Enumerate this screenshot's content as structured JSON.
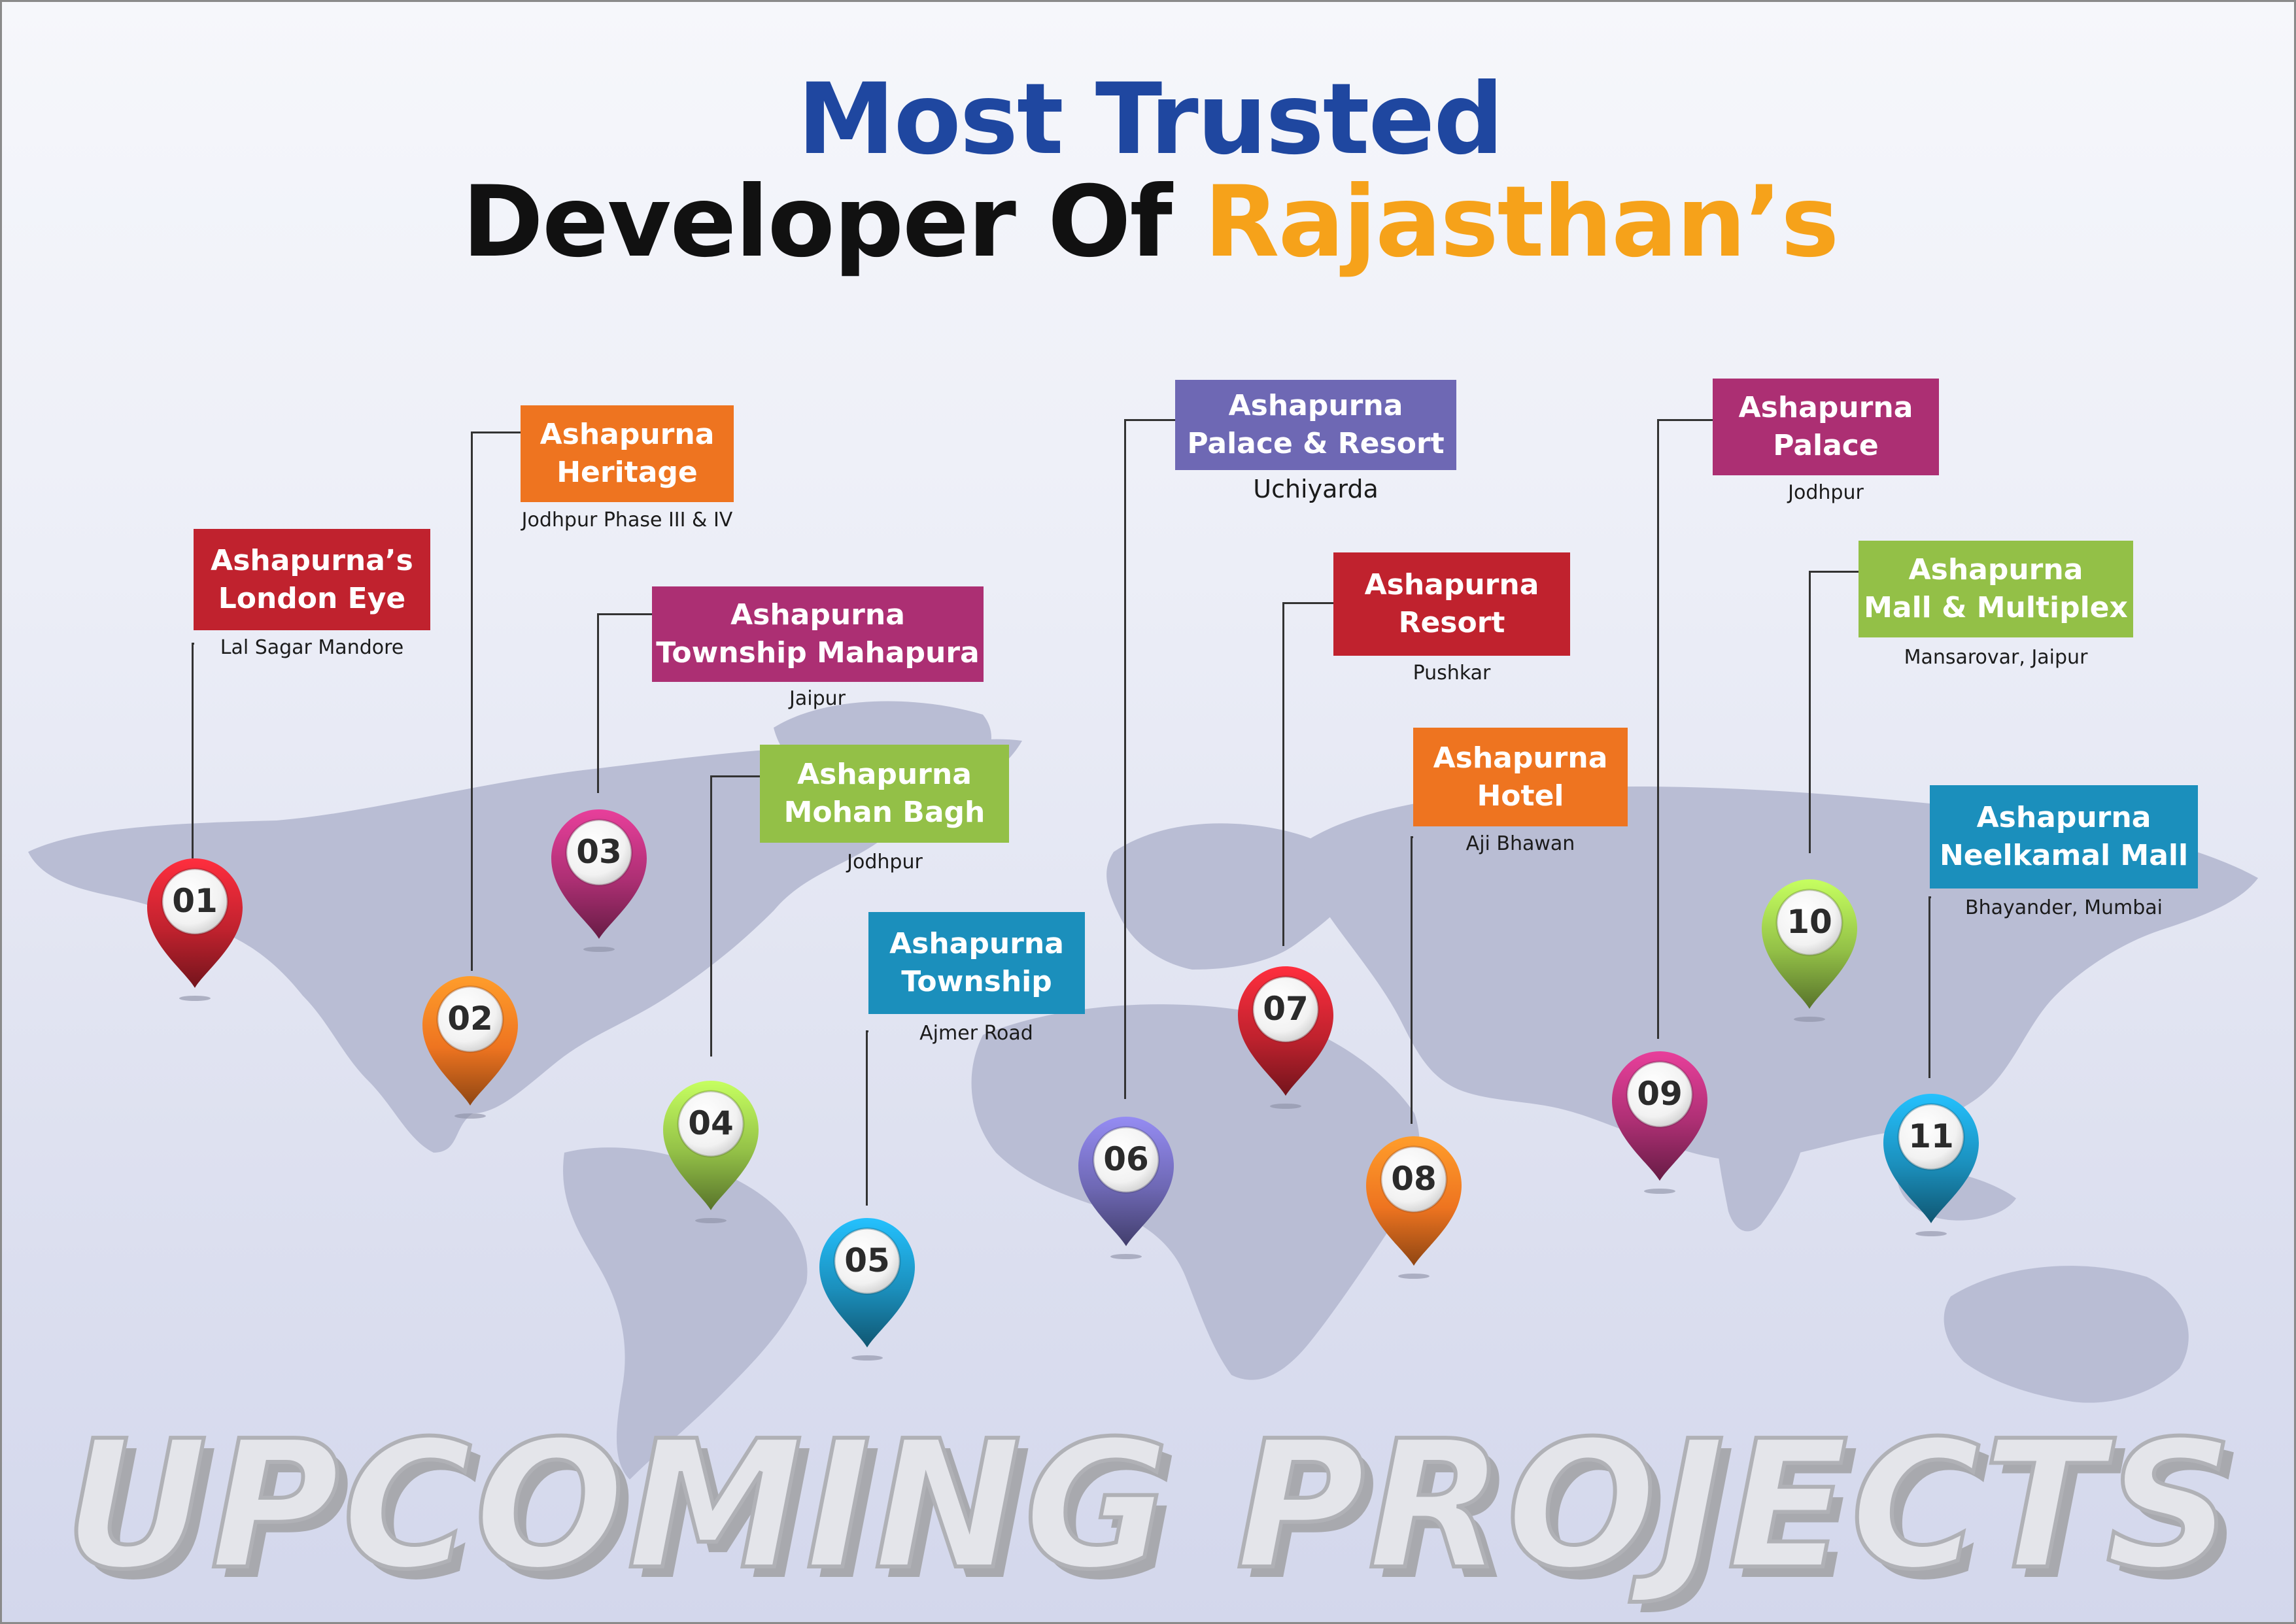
{
  "title": {
    "line1": "Most Trusted",
    "line2_prefix": "Developer Of ",
    "line2_accent": "Rajasthan’s"
  },
  "watermark": "UPCOMING PROJECTS",
  "projects": [
    {
      "num": "01",
      "name_line1": "Ashapurna’s",
      "name_line2": "London Eye",
      "location": "Lal Sagar Mandore",
      "color": "#c0222e"
    },
    {
      "num": "02",
      "name_line1": "Ashapurna",
      "name_line2": "Heritage",
      "location": "Jodhpur Phase III & IV",
      "color": "#ee7420"
    },
    {
      "num": "03",
      "name_line1": "Ashapurna",
      "name_line2": "Township Mahapura",
      "location": "Jaipur",
      "color": "#ac2f73"
    },
    {
      "num": "04",
      "name_line1": "Ashapurna",
      "name_line2": "Mohan Bagh",
      "location": "Jodhpur",
      "color": "#93c047"
    },
    {
      "num": "05",
      "name_line1": "Ashapurna",
      "name_line2": "Township",
      "location": "Ajmer Road",
      "color": "#1b8fbc"
    },
    {
      "num": "06",
      "name_line1": "Ashapurna",
      "name_line2": "Palace & Resort",
      "location": "Uchiyarda",
      "color": "#6e68b4"
    },
    {
      "num": "07",
      "name_line1": "Ashapurna",
      "name_line2": "Resort",
      "location": "Pushkar",
      "color": "#c0222e"
    },
    {
      "num": "08",
      "name_line1": "Ashapurna",
      "name_line2": "Hotel",
      "location": "Aji Bhawan",
      "color": "#ee7420"
    },
    {
      "num": "09",
      "name_line1": "Ashapurna",
      "name_line2": "Palace",
      "location": "Jodhpur",
      "color": "#ac2f73"
    },
    {
      "num": "10",
      "name_line1": "Ashapurna",
      "name_line2": "Mall & Multiplex",
      "location": "Mansarovar, Jaipur",
      "color": "#93c047"
    },
    {
      "num": "11",
      "name_line1": "Ashapurna",
      "name_line2": "Neelkamal Mall",
      "location": "Bhayander, Mumbai",
      "color": "#1b8fbc"
    }
  ],
  "icons": {
    "pin": "map-pin-icon",
    "map": "world-map"
  }
}
